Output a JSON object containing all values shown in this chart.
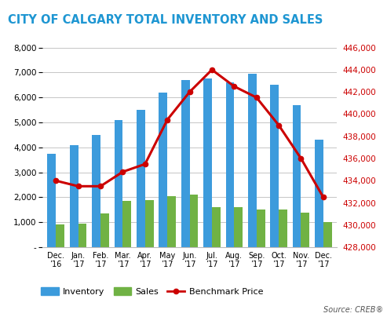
{
  "title": "CITY OF CALGARY TOTAL INVENTORY AND SALES",
  "categories": [
    "Dec.\n’16",
    "Jan.\n’17",
    "Feb.\n’17",
    "Mar.\n’17",
    "Apr.\n’17",
    "May\n’17",
    "Jun.\n’17",
    "Jul.\n’17",
    "Aug.\n’17",
    "Sep.\n’17",
    "Oct.\n’17",
    "Nov.\n’17",
    "Dec.\n’17"
  ],
  "inventory": [
    3750,
    4100,
    4500,
    5100,
    5500,
    6200,
    6700,
    6750,
    6600,
    6950,
    6500,
    5700,
    4300
  ],
  "sales": [
    900,
    950,
    1350,
    1850,
    1900,
    2050,
    2100,
    1600,
    1600,
    1500,
    1500,
    1400,
    1000
  ],
  "benchmark_price": [
    434000,
    433500,
    433500,
    434800,
    435500,
    439500,
    442000,
    444000,
    442500,
    441500,
    439000,
    436000,
    432500
  ],
  "inventory_color": "#3C9BDC",
  "sales_color": "#70B244",
  "line_color": "#CC0000",
  "title_color": "#1E96D2",
  "left_ylim": [
    0,
    8000
  ],
  "left_yticks": [
    0,
    1000,
    2000,
    3000,
    4000,
    5000,
    6000,
    7000,
    8000
  ],
  "left_yticklabels": [
    "-",
    "1,000",
    "2,000",
    "3,000",
    "4,000",
    "5,000",
    "6,000",
    "7,000",
    "8,000"
  ],
  "right_ylim": [
    428000,
    446000
  ],
  "right_yticks": [
    428000,
    430000,
    432000,
    434000,
    436000,
    438000,
    440000,
    442000,
    444000,
    446000
  ],
  "right_yticklabels": [
    "428,000",
    "430,000",
    "432,000",
    "434,000",
    "436,000",
    "438,000",
    "440,000",
    "442,000",
    "444,000",
    "446,000"
  ],
  "source_text": "Source: CREB®",
  "background_color": "#FFFFFF",
  "grid_color": "#BBBBBB",
  "bar_width": 0.38
}
